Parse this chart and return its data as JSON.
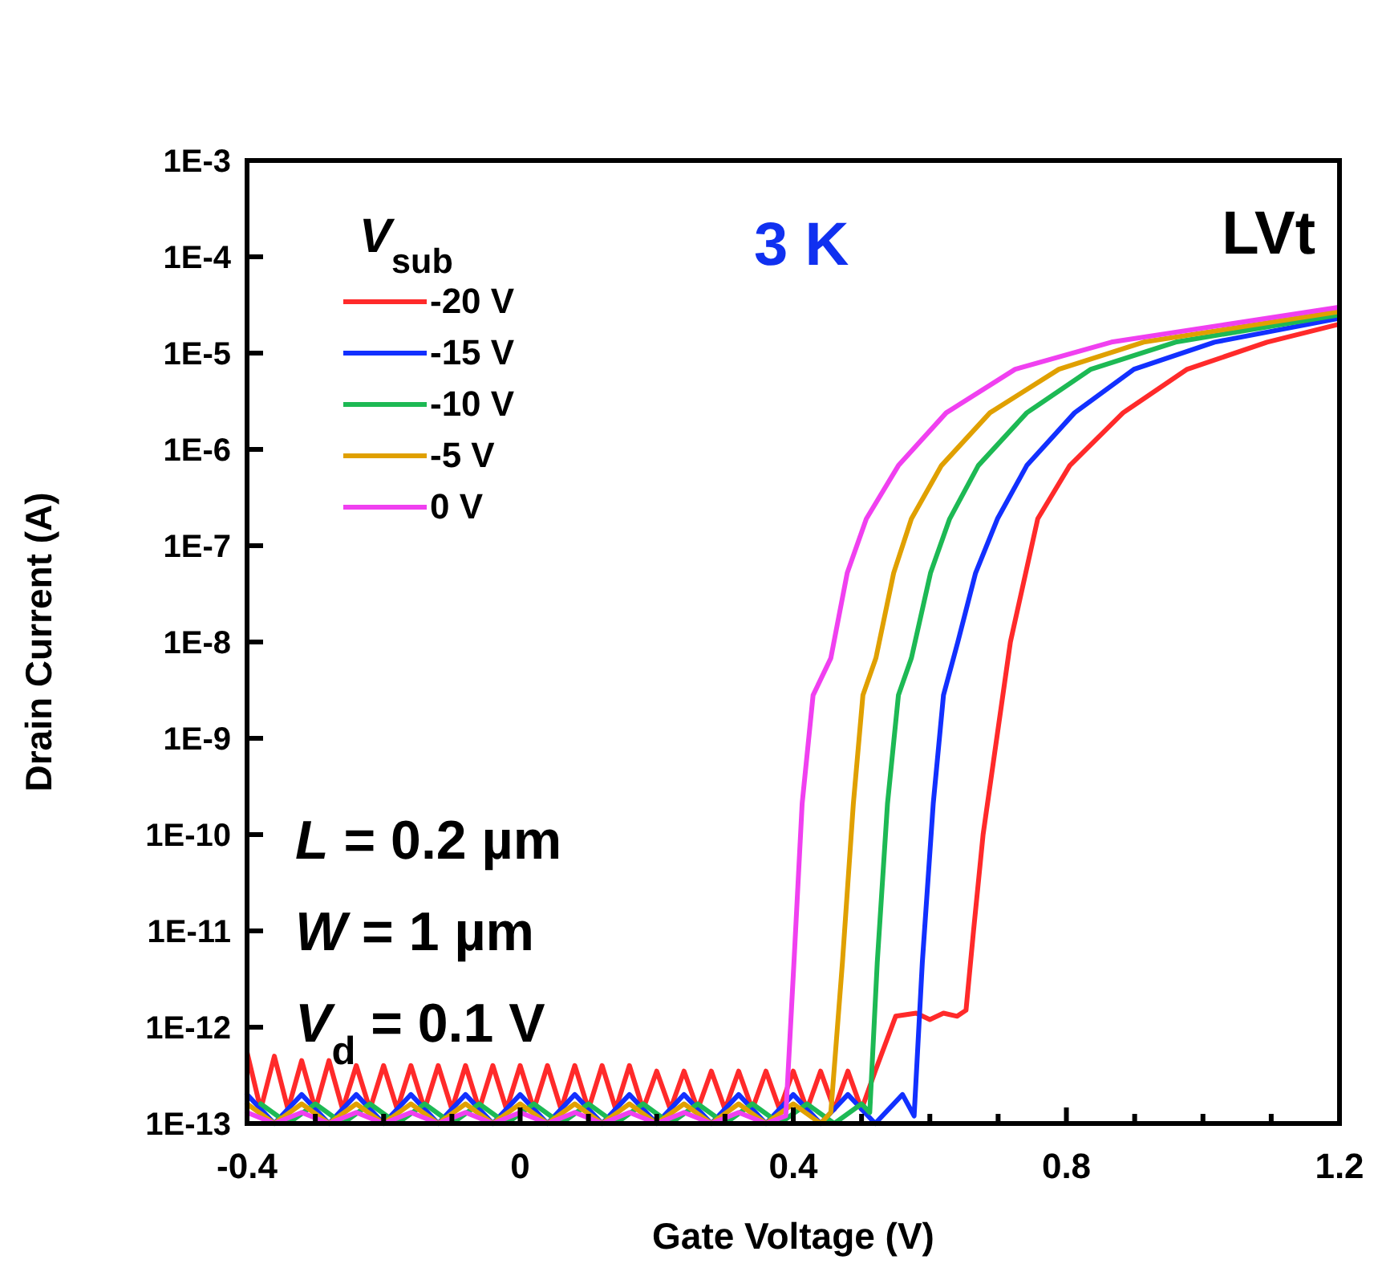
{
  "chart_data": {
    "type": "line",
    "xlabel": "Gate Voltage (V)",
    "ylabel": "Drain Current (A)",
    "legend_title": "V$_{sub}$",
    "annotations": [
      "3 K",
      "LVt",
      "L = 0.2 µm",
      "W = 1 µm",
      "V$_{d}$ = 0.1 V"
    ],
    "log": "y",
    "grid": false,
    "legend": "top left",
    "marker": "none",
    "line_style": "solid",
    "xlim": [
      -0.4,
      1.2
    ],
    "ylim": [
      1e-13,
      0.001
    ],
    "xticks": [
      -0.4,
      {
        "value": -0.3,
        "label": null
      },
      {
        "value": -0.2,
        "label": null
      },
      {
        "value": -0.1,
        "label": null
      },
      0,
      {
        "value": 0.1,
        "label": null
      },
      {
        "value": 0.2,
        "label": null
      },
      {
        "value": 0.3,
        "label": null
      },
      0.4,
      {
        "value": 0.5,
        "label": null
      },
      {
        "value": 0.6,
        "label": null
      },
      {
        "value": 0.7,
        "label": null
      },
      0.8,
      {
        "value": 0.9,
        "label": null
      },
      {
        "value": 1.0,
        "label": null
      },
      {
        "value": 1.1,
        "label": null
      },
      1.2
    ],
    "yticks": [
      {
        "value": 1e-13,
        "label": "1E-13"
      },
      {
        "value": 1e-12,
        "label": "1E-12"
      },
      {
        "value": 1e-11,
        "label": "1E-11"
      },
      {
        "value": 1e-10,
        "label": "1E-10"
      },
      {
        "value": 1e-09,
        "label": "1E-9"
      },
      {
        "value": 1e-08,
        "label": "1E-8"
      },
      {
        "value": 1e-07,
        "label": "1E-7"
      },
      {
        "value": 1e-06,
        "label": "1E-6"
      },
      {
        "value": 1e-05,
        "label": "1E-5"
      },
      {
        "value": 0.0001,
        "label": "1E-4"
      },
      {
        "value": 0.001,
        "label": "1E-3"
      }
    ],
    "series": [
      {
        "name": "-20 V",
        "color": "#ff2a2a",
        "x": [
          -0.4,
          -0.38,
          -0.36,
          -0.34,
          -0.32,
          -0.3,
          -0.28,
          -0.26,
          -0.24,
          -0.22,
          -0.2,
          -0.18,
          -0.16,
          -0.14,
          -0.12,
          -0.1,
          -0.08,
          -0.06,
          -0.04,
          -0.02,
          0,
          0.02,
          0.04,
          0.06,
          0.08,
          0.1,
          0.12,
          0.14,
          0.16,
          0.18,
          0.2,
          0.22,
          0.24,
          0.26,
          0.28,
          0.3,
          0.32,
          0.34,
          0.36,
          0.38,
          0.4,
          0.42,
          0.44,
          0.46,
          0.48,
          0.5,
          0.52,
          0.55,
          0.58,
          0.6,
          0.62,
          0.64,
          0.653,
          0.664,
          0.678,
          0.718,
          0.758,
          0.805,
          0.883,
          0.977,
          1.094,
          1.2
        ],
        "values": [
          5.5e-13,
          1.4e-13,
          5e-13,
          1.4e-13,
          4.5e-13,
          1.4e-13,
          4.5e-13,
          1.4e-13,
          4e-13,
          1.4e-13,
          4e-13,
          1.4e-13,
          4e-13,
          1.4e-13,
          4e-13,
          1.4e-13,
          4e-13,
          1.4e-13,
          4e-13,
          1.4e-13,
          4e-13,
          1.4e-13,
          4e-13,
          1.4e-13,
          4e-13,
          1.4e-13,
          4e-13,
          1.4e-13,
          4e-13,
          1.4e-13,
          3.5e-13,
          1.4e-13,
          3.5e-13,
          1.4e-13,
          3.5e-13,
          1.4e-13,
          3.5e-13,
          1.4e-13,
          3.5e-13,
          1.4e-13,
          3.5e-13,
          1.4e-13,
          3.5e-13,
          1.4e-13,
          3.5e-13,
          1.4e-13,
          3.5e-13,
          1.3e-12,
          1.4e-12,
          1.2e-12,
          1.4e-12,
          1.3e-12,
          1.5e-12,
          1e-11,
          1e-10,
          1e-08,
          1.9e-07,
          6.8e-07,
          2.4e-06,
          6.8e-06,
          1.3e-05,
          2e-05
        ]
      },
      {
        "name": "-15 V",
        "color": "#1230ff",
        "x": [
          -0.4,
          -0.36,
          -0.32,
          -0.28,
          -0.24,
          -0.2,
          -0.16,
          -0.12,
          -0.08,
          -0.04,
          0,
          0.04,
          0.08,
          0.12,
          0.16,
          0.2,
          0.24,
          0.28,
          0.32,
          0.36,
          0.4,
          0.44,
          0.48,
          0.52,
          0.56,
          0.577,
          0.589,
          0.605,
          0.62,
          0.641,
          0.667,
          0.699,
          0.742,
          0.812,
          0.899,
          1.017,
          1.2
        ],
        "values": [
          2e-13,
          1e-13,
          2e-13,
          1e-13,
          2e-13,
          1e-13,
          2e-13,
          1e-13,
          2e-13,
          1e-13,
          2e-13,
          1e-13,
          2e-13,
          1e-13,
          2e-13,
          1e-13,
          2e-13,
          1e-13,
          2e-13,
          1e-13,
          2e-13,
          1e-13,
          2e-13,
          1e-13,
          2e-13,
          1.2e-13,
          4.7e-12,
          2.1e-10,
          2.8e-09,
          1e-08,
          5.2e-08,
          1.9e-07,
          6.8e-07,
          2.4e-06,
          6.8e-06,
          1.3e-05,
          2.3e-05
        ]
      },
      {
        "name": "-10 V",
        "color": "#1db954",
        "x": [
          -0.38,
          -0.34,
          -0.3,
          -0.26,
          -0.22,
          -0.18,
          -0.14,
          -0.1,
          -0.06,
          -0.02,
          0.02,
          0.06,
          0.1,
          0.14,
          0.18,
          0.22,
          0.26,
          0.3,
          0.34,
          0.38,
          0.42,
          0.46,
          0.5,
          0.512,
          0.523,
          0.538,
          0.554,
          0.573,
          0.601,
          0.629,
          0.671,
          0.742,
          0.836,
          0.96,
          1.2
        ],
        "values": [
          1.6e-13,
          1e-13,
          1.6e-13,
          1e-13,
          1.6e-13,
          1e-13,
          1.6e-13,
          1e-13,
          1.6e-13,
          1e-13,
          1.6e-13,
          1e-13,
          1.6e-13,
          1e-13,
          1.6e-13,
          1e-13,
          1.6e-13,
          1e-13,
          1.6e-13,
          1e-13,
          1.6e-13,
          1e-13,
          1.6e-13,
          1.3e-13,
          4.7e-12,
          2.1e-10,
          2.8e-09,
          6.8e-09,
          5.2e-08,
          1.9e-07,
          6.8e-07,
          2.4e-06,
          6.8e-06,
          1.3e-05,
          2.5e-05
        ]
      },
      {
        "name": "-5 V",
        "color": "#e0a000",
        "x": [
          -0.4,
          -0.36,
          -0.32,
          -0.28,
          -0.24,
          -0.2,
          -0.16,
          -0.12,
          -0.08,
          -0.04,
          0,
          0.04,
          0.08,
          0.12,
          0.16,
          0.2,
          0.24,
          0.28,
          0.32,
          0.36,
          0.4,
          0.44,
          0.455,
          0.472,
          0.488,
          0.502,
          0.521,
          0.547,
          0.573,
          0.617,
          0.688,
          0.789,
          0.913,
          1.2
        ],
        "values": [
          1.6e-13,
          1e-13,
          1.6e-13,
          1e-13,
          1.6e-13,
          1e-13,
          1.6e-13,
          1e-13,
          1.6e-13,
          1e-13,
          1.6e-13,
          1e-13,
          1.6e-13,
          1e-13,
          1.6e-13,
          1e-13,
          1.6e-13,
          1e-13,
          1.6e-13,
          1e-13,
          1.6e-13,
          1e-13,
          1.3e-13,
          4.7e-12,
          2.1e-10,
          2.8e-09,
          6.8e-09,
          5.2e-08,
          1.9e-07,
          6.8e-07,
          2.4e-06,
          6.8e-06,
          1.3e-05,
          2.7e-05
        ]
      },
      {
        "name": "0 V",
        "color": "#f040f0",
        "x": [
          -0.4,
          -0.36,
          -0.32,
          -0.28,
          -0.24,
          -0.2,
          -0.16,
          -0.12,
          -0.08,
          -0.04,
          0,
          0.04,
          0.08,
          0.12,
          0.16,
          0.2,
          0.24,
          0.28,
          0.32,
          0.36,
          0.389,
          0.401,
          0.413,
          0.429,
          0.455,
          0.479,
          0.507,
          0.554,
          0.624,
          0.725,
          0.866,
          1.2
        ],
        "values": [
          1.3e-13,
          1e-13,
          1.3e-13,
          1e-13,
          1.3e-13,
          1e-13,
          1.3e-13,
          1e-13,
          1.3e-13,
          1e-13,
          1.3e-13,
          1e-13,
          1.3e-13,
          1e-13,
          1.3e-13,
          1e-13,
          1.3e-13,
          1e-13,
          1.3e-13,
          1e-13,
          1.2e-13,
          4.7e-12,
          2.1e-10,
          2.8e-09,
          6.8e-09,
          5.2e-08,
          1.9e-07,
          6.8e-07,
          2.4e-06,
          6.8e-06,
          1.3e-05,
          3e-05
        ]
      }
    ]
  }
}
